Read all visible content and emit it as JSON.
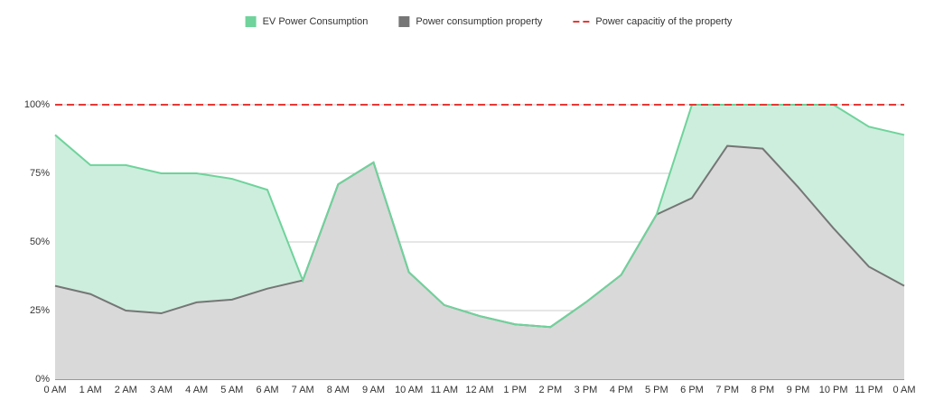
{
  "chart_data": {
    "type": "area",
    "stacked": true,
    "categories": [
      "0 AM",
      "1 AM",
      "2 AM",
      "3 AM",
      "4 AM",
      "5 AM",
      "6 AM",
      "7 AM",
      "8 AM",
      "9 AM",
      "10 AM",
      "11 AM",
      "12 AM",
      "1 PM",
      "2 PM",
      "3 PM",
      "4 PM",
      "5 PM",
      "6 PM",
      "7 PM",
      "8 PM",
      "9 PM",
      "10 PM",
      "11 PM",
      "0 AM"
    ],
    "series": [
      {
        "name": "EV Power Consumption",
        "color": "#6fd39b",
        "fill": "#cdeedd",
        "values": [
          55,
          47,
          53,
          51,
          47,
          44,
          36,
          0,
          0,
          0,
          0,
          0,
          0,
          0,
          0,
          0,
          0,
          0,
          34,
          15,
          16,
          30,
          45,
          51,
          55
        ]
      },
      {
        "name": "Power consumption property",
        "color": "#767676",
        "fill": "#d9d9d9",
        "values": [
          34,
          31,
          25,
          24,
          28,
          29,
          33,
          36,
          71,
          79,
          39,
          27,
          23,
          20,
          19,
          28,
          38,
          60,
          66,
          85,
          84,
          70,
          55,
          41,
          34
        ]
      },
      {
        "name": "Power capacitiy of the property",
        "type": "line",
        "dashed": true,
        "color": "#e53935",
        "values": [
          100,
          100,
          100,
          100,
          100,
          100,
          100,
          100,
          100,
          100,
          100,
          100,
          100,
          100,
          100,
          100,
          100,
          100,
          100,
          100,
          100,
          100,
          100,
          100,
          100
        ]
      }
    ],
    "ylim": [
      0,
      100
    ],
    "yticks": [
      {
        "value": 0,
        "label": "0%"
      },
      {
        "value": 25,
        "label": "25%"
      },
      {
        "value": 50,
        "label": "50%"
      },
      {
        "value": 75,
        "label": "75%"
      },
      {
        "value": 100,
        "label": "100%"
      }
    ],
    "grid": true,
    "legend": "top"
  }
}
